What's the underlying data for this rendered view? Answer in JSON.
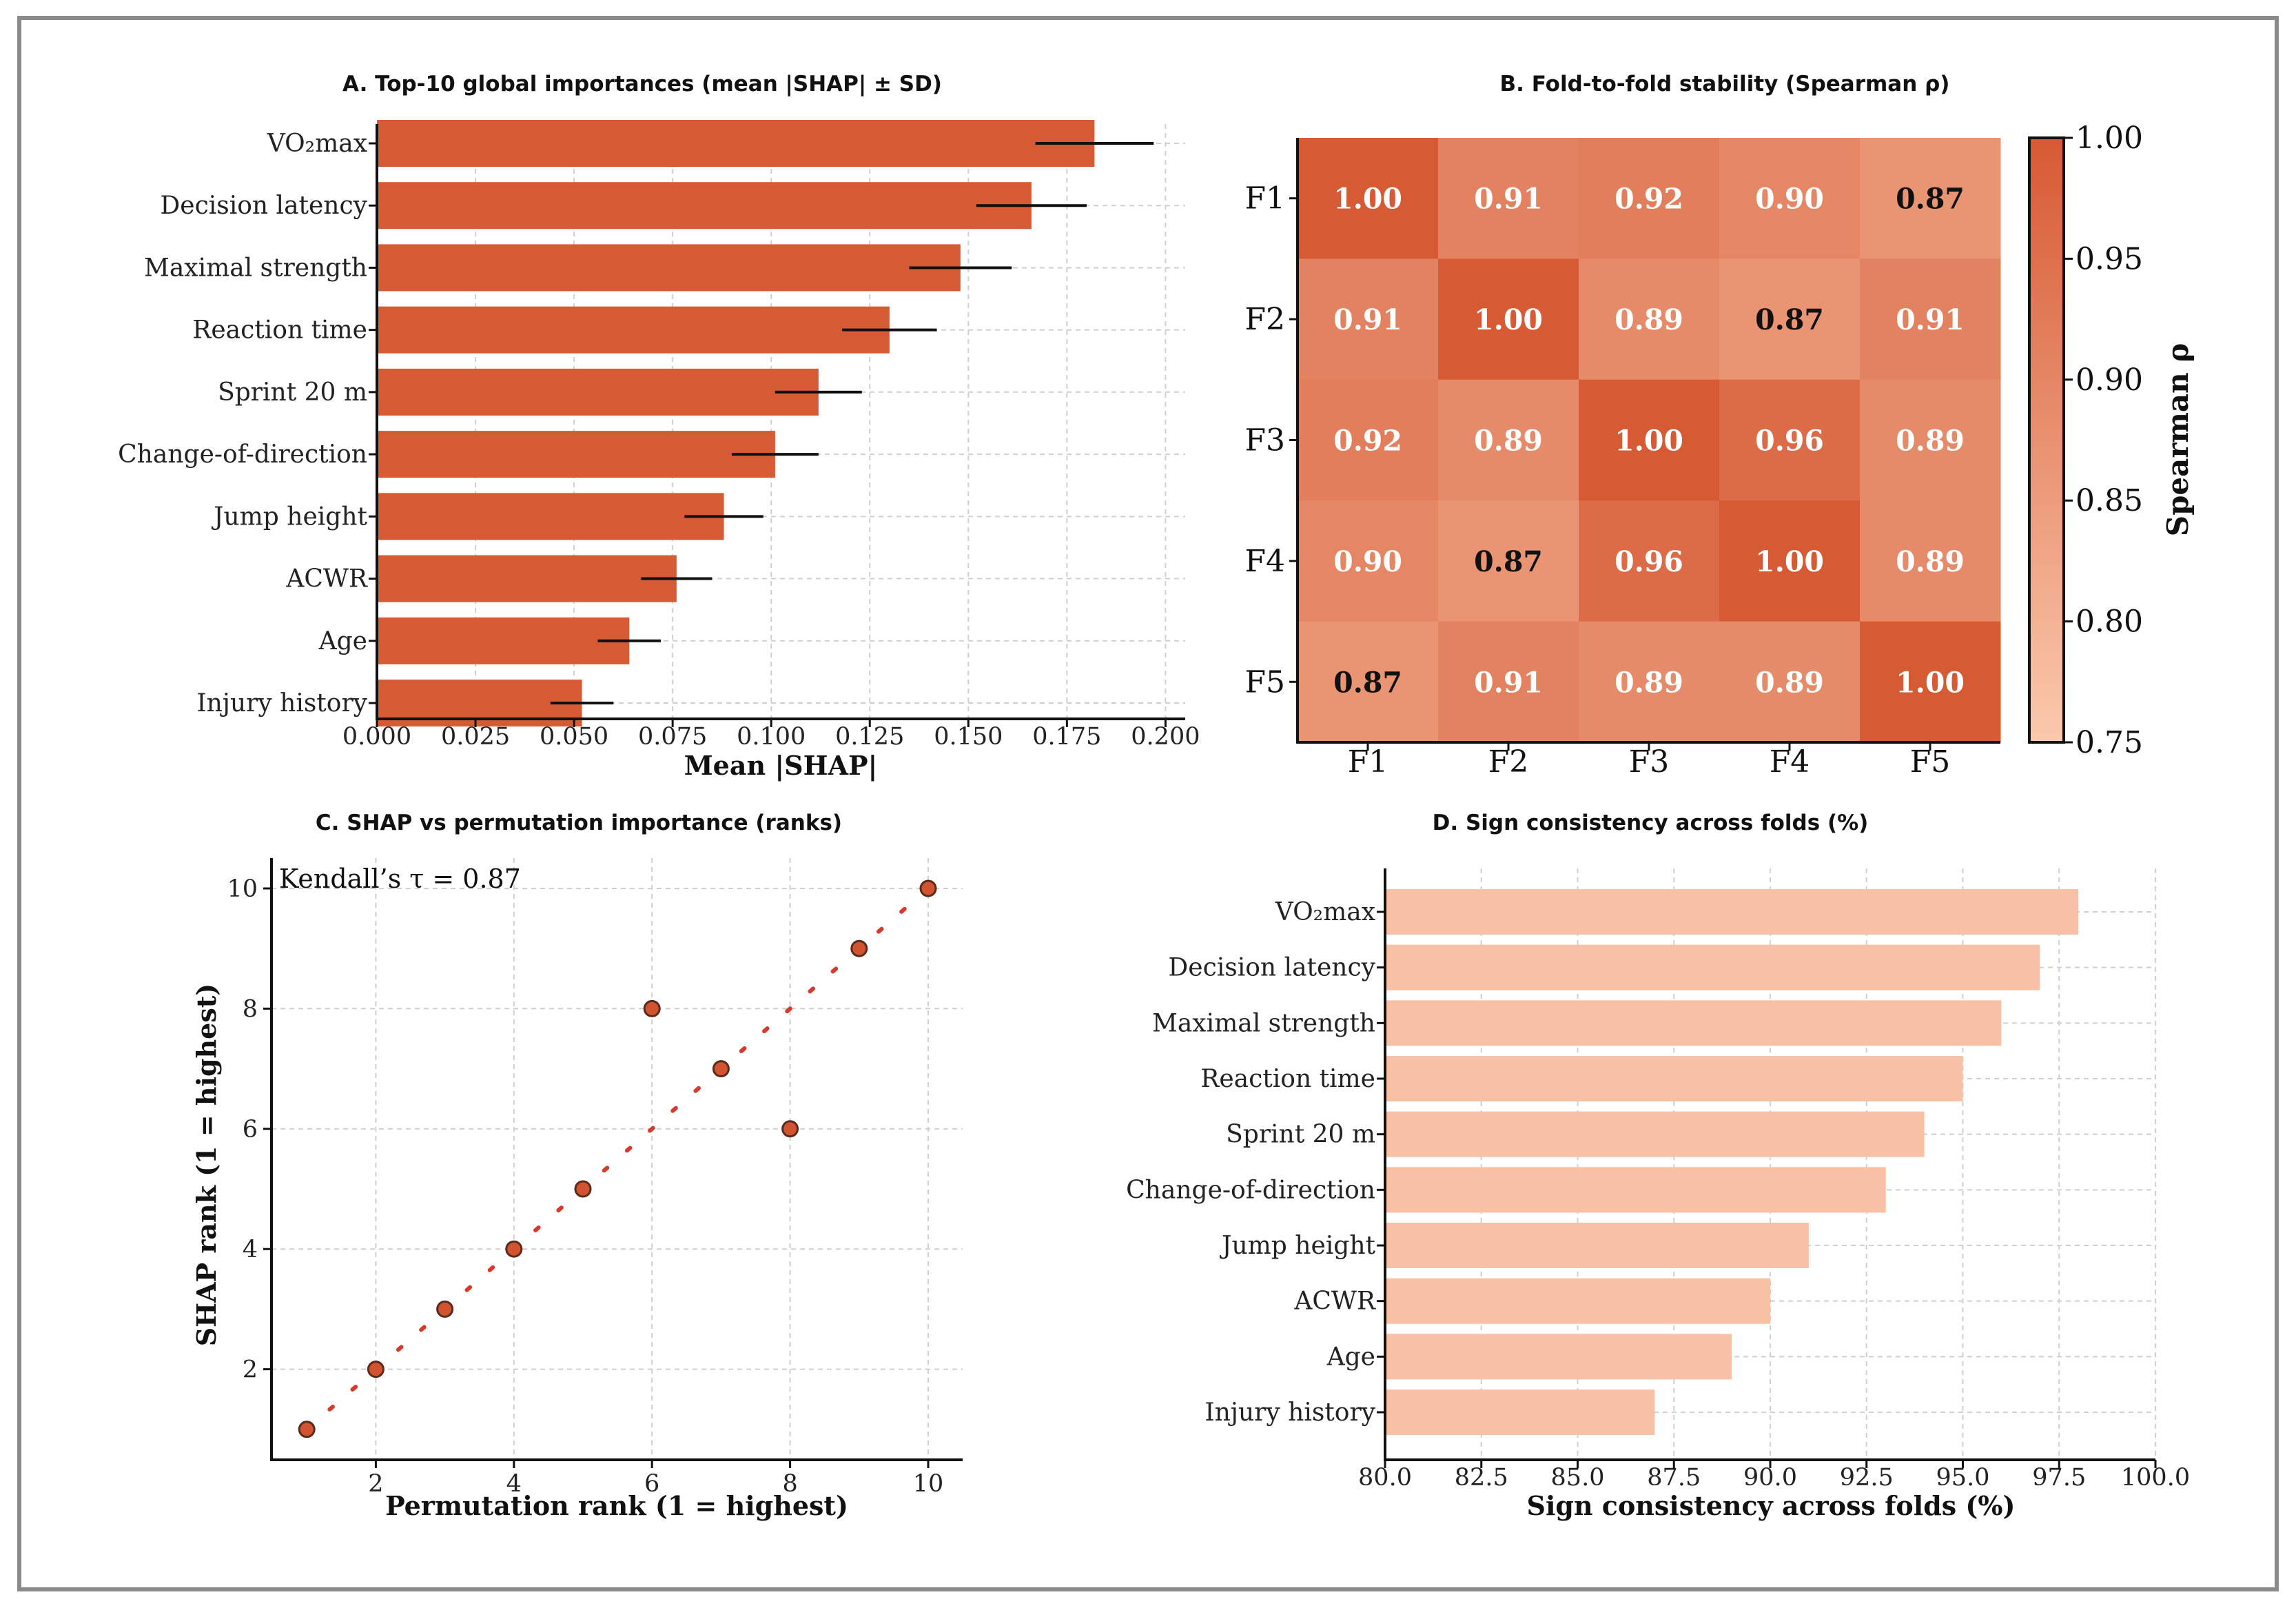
{
  "chart_data": [
    {
      "id": "A",
      "type": "bar",
      "orientation": "horizontal",
      "title": "A. Top-10 global importances (mean |SHAP| ± SD)",
      "xlabel": "Mean |SHAP|",
      "ylabel": "",
      "xlim": [
        0,
        0.205
      ],
      "xticks": [
        "0.000",
        "0.025",
        "0.050",
        "0.075",
        "0.100",
        "0.125",
        "0.150",
        "0.175",
        "0.200"
      ],
      "categories": [
        "VO₂max",
        "Decision latency",
        "Maximal strength",
        "Reaction time",
        "Sprint 20 m",
        "Change-of-direction",
        "Jump height",
        "ACWR",
        "Age",
        "Injury history"
      ],
      "values": [
        0.182,
        0.166,
        0.148,
        0.13,
        0.112,
        0.101,
        0.088,
        0.076,
        0.064,
        0.052
      ],
      "sd": [
        0.015,
        0.014,
        0.013,
        0.012,
        0.011,
        0.011,
        0.01,
        0.009,
        0.008,
        0.008
      ],
      "color": "#d65a34"
    },
    {
      "id": "B",
      "type": "heatmap",
      "title": "B. Fold-to-fold stability (Spearman ρ)",
      "rows": [
        "F1",
        "F2",
        "F3",
        "F4",
        "F5"
      ],
      "cols": [
        "F1",
        "F2",
        "F3",
        "F4",
        "F5"
      ],
      "matrix": [
        [
          1.0,
          0.91,
          0.92,
          0.9,
          0.87
        ],
        [
          0.91,
          1.0,
          0.89,
          0.87,
          0.91
        ],
        [
          0.92,
          0.89,
          1.0,
          0.96,
          0.89
        ],
        [
          0.9,
          0.87,
          0.96,
          1.0,
          0.89
        ],
        [
          0.87,
          0.91,
          0.89,
          0.89,
          1.0
        ]
      ],
      "vmin": 0.75,
      "vmax": 1.0,
      "colorbar_label": "Spearman ρ",
      "colorbar_ticks": [
        "1.00",
        "0.95",
        "0.90",
        "0.85",
        "0.80",
        "0.75"
      ],
      "colormap": [
        "#fbc9ad",
        "#d65a34"
      ]
    },
    {
      "id": "C",
      "type": "scatter",
      "title": "C. SHAP vs permutation importance (ranks)",
      "xlabel": "Permutation rank (1 = highest)",
      "ylabel": "SHAP rank (1 = highest)",
      "xlim": [
        0.5,
        10.5
      ],
      "ylim": [
        0.5,
        10.5
      ],
      "xticks": [
        "2",
        "4",
        "6",
        "8",
        "10"
      ],
      "yticks": [
        "2",
        "4",
        "6",
        "8",
        "10"
      ],
      "x": [
        1,
        2,
        3,
        4,
        5,
        6,
        7,
        8,
        9,
        10
      ],
      "y": [
        1,
        2,
        3,
        4,
        5,
        8,
        7,
        6,
        9,
        10
      ],
      "reference_line": "y = x",
      "annotation": "Kendall’s τ = 0.87"
    },
    {
      "id": "D",
      "type": "bar",
      "orientation": "horizontal",
      "title": "D. Sign consistency across folds (%)",
      "xlabel": "Sign consistency across folds (%)",
      "ylabel": "",
      "xlim": [
        80.0,
        100.0
      ],
      "xticks": [
        "80.0",
        "82.5",
        "85.0",
        "87.5",
        "90.0",
        "92.5",
        "95.0",
        "97.5",
        "100.0"
      ],
      "categories": [
        "VO₂max",
        "Decision latency",
        "Maximal strength",
        "Reaction time",
        "Sprint 20 m",
        "Change-of-direction",
        "Jump height",
        "ACWR",
        "Age",
        "Injury history"
      ],
      "values": [
        98,
        97,
        96,
        95,
        94,
        93,
        91,
        90,
        89,
        87
      ],
      "color": "#f8c0a4"
    }
  ]
}
